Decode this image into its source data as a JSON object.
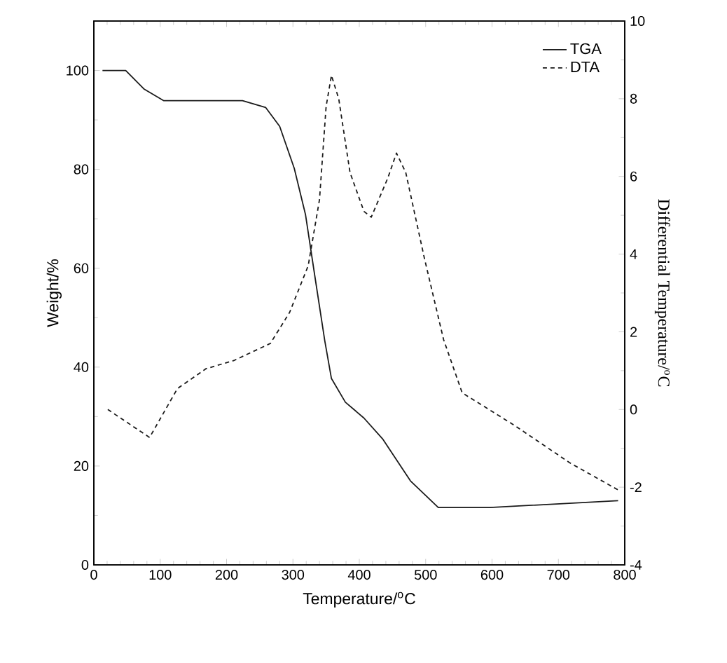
{
  "chart_data": {
    "type": "line",
    "xlabel": "Temperature/$^{o}$C",
    "ylabel": "Weight/%",
    "y2label": "Differential Temperature/$^{o}$C",
    "xlim": [
      0,
      800
    ],
    "xticks": [
      0,
      100,
      200,
      300,
      400,
      500,
      600,
      700,
      800
    ],
    "ylim": [
      0,
      110
    ],
    "yticks": [
      0,
      20,
      40,
      60,
      80,
      100
    ],
    "y2lim": [
      -4,
      10
    ],
    "y2ticks": [
      -4,
      -2,
      0,
      2,
      4,
      6,
      8,
      10
    ],
    "legend": "top right",
    "marker": "none",
    "series": [
      {
        "name": "TGA",
        "color": "#1a1a1a",
        "line_style": "solid",
        "axis": "y",
        "x": [
          13,
          48,
          76,
          105,
          224,
          259,
          280,
          302,
          319,
          333,
          348,
          358,
          379,
          407,
          435,
          477,
          519,
          597,
          790
        ],
        "values": [
          100,
          100,
          96.2,
          93.9,
          93.9,
          92.5,
          88.7,
          80.2,
          70.8,
          58.4,
          45.3,
          37.7,
          32.9,
          29.7,
          25.5,
          17,
          11.6,
          11.6,
          13
        ]
      },
      {
        "name": "DTA",
        "color": "#1a1a1a",
        "line_style": "dashed",
        "axis": "y2",
        "x": [
          21,
          84,
          126,
          169,
          211,
          266,
          295,
          323,
          340,
          350,
          358,
          369,
          386,
          407,
          418,
          443,
          456,
          470,
          498,
          527,
          555,
          633,
          717,
          793
        ],
        "values": [
          0,
          -0.72,
          0.54,
          1.05,
          1.26,
          1.7,
          2.5,
          3.7,
          5.4,
          7.8,
          8.6,
          8.0,
          6.1,
          5.1,
          4.95,
          5.96,
          6.6,
          6.1,
          3.9,
          1.8,
          0.43,
          -0.4,
          -1.37,
          -2.1
        ]
      }
    ]
  }
}
